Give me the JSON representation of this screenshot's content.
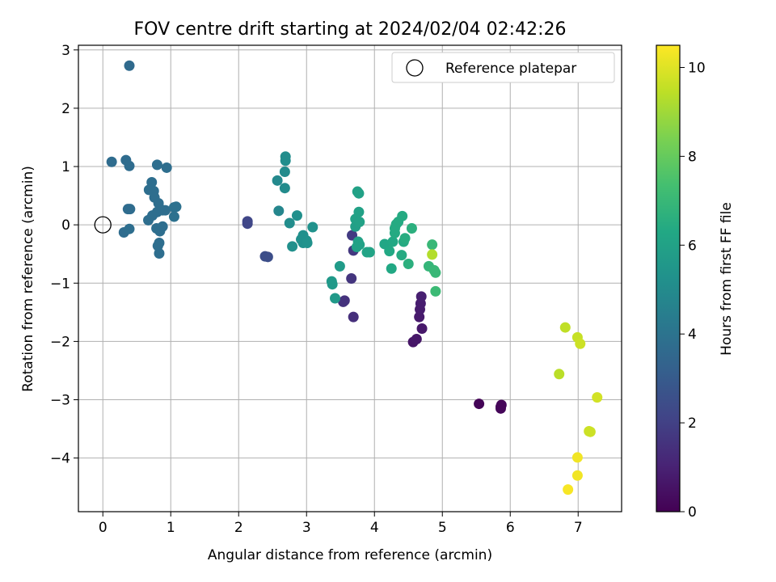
{
  "chart_data": {
    "type": "scatter",
    "title": "FOV centre drift starting at 2024/02/04 02:42:26",
    "xlabel": "Angular distance from reference (arcmin)",
    "ylabel": "Rotation from reference (arcmin)",
    "colorbar_label": "Hours from first FF file",
    "colormap": "viridis",
    "xlim": [
      -0.36,
      7.64
    ],
    "ylim": [
      -4.92,
      3.08
    ],
    "x_ticks": [
      0,
      1,
      2,
      3,
      4,
      5,
      6,
      7
    ],
    "y_ticks": [
      -4,
      -3,
      -2,
      -1,
      0,
      1,
      2,
      3
    ],
    "x_tick_labels": [
      "0",
      "1",
      "2",
      "3",
      "4",
      "5",
      "6",
      "7"
    ],
    "y_tick_labels": [
      "−4",
      "−3",
      "−2",
      "−1",
      "0",
      "1",
      "2",
      "3"
    ],
    "colorbar_range": [
      0,
      10.5
    ],
    "colorbar_ticks": [
      0,
      2,
      4,
      6,
      8,
      10
    ],
    "colorbar_tick_labels": [
      "0",
      "2",
      "4",
      "6",
      "8",
      "10"
    ],
    "grid": true,
    "legend": {
      "entry": "Reference platepar",
      "placement": "top-right"
    },
    "reference_point": {
      "x": 0,
      "y": 0
    },
    "points": [
      {
        "x": 5.54,
        "y": -3.07,
        "h": 0.1
      },
      {
        "x": 5.86,
        "y": -3.12,
        "h": 0.1
      },
      {
        "x": 5.87,
        "y": -3.09,
        "h": 0.15
      },
      {
        "x": 5.86,
        "y": -3.15,
        "h": 0.15
      },
      {
        "x": 4.57,
        "y": -2.01,
        "h": 0.6
      },
      {
        "x": 4.62,
        "y": -1.96,
        "h": 0.65
      },
      {
        "x": 4.7,
        "y": -1.78,
        "h": 0.7
      },
      {
        "x": 4.66,
        "y": -1.58,
        "h": 0.75
      },
      {
        "x": 4.67,
        "y": -1.45,
        "h": 0.8
      },
      {
        "x": 4.68,
        "y": -1.35,
        "h": 0.85
      },
      {
        "x": 4.69,
        "y": -1.23,
        "h": 0.9
      },
      {
        "x": 3.69,
        "y": -1.58,
        "h": 1.4
      },
      {
        "x": 3.56,
        "y": -1.3,
        "h": 1.5
      },
      {
        "x": 3.54,
        "y": -1.32,
        "h": 1.5
      },
      {
        "x": 3.66,
        "y": -0.92,
        "h": 1.6
      },
      {
        "x": 3.69,
        "y": -0.44,
        "h": 1.7
      },
      {
        "x": 3.67,
        "y": -0.18,
        "h": 1.8
      },
      {
        "x": 2.13,
        "y": 0.02,
        "h": 2.2
      },
      {
        "x": 2.13,
        "y": 0.06,
        "h": 2.2
      },
      {
        "x": 2.39,
        "y": -0.54,
        "h": 2.5
      },
      {
        "x": 2.43,
        "y": -0.55,
        "h": 2.5
      },
      {
        "x": 0.39,
        "y": 2.73,
        "h": 3.6
      },
      {
        "x": 0.13,
        "y": 1.08,
        "h": 3.7
      },
      {
        "x": 0.34,
        "y": 1.11,
        "h": 3.7
      },
      {
        "x": 0.39,
        "y": 1.01,
        "h": 3.7
      },
      {
        "x": 0.4,
        "y": 0.27,
        "h": 3.7
      },
      {
        "x": 0.37,
        "y": 0.27,
        "h": 3.7
      },
      {
        "x": 0.31,
        "y": -0.13,
        "h": 3.7
      },
      {
        "x": 0.39,
        "y": -0.07,
        "h": 3.8
      },
      {
        "x": 0.67,
        "y": 0.08,
        "h": 3.8
      },
      {
        "x": 0.72,
        "y": 0.73,
        "h": 3.8
      },
      {
        "x": 0.68,
        "y": 0.6,
        "h": 3.8
      },
      {
        "x": 0.75,
        "y": 0.58,
        "h": 3.8
      },
      {
        "x": 0.76,
        "y": 0.47,
        "h": 3.8
      },
      {
        "x": 0.8,
        "y": 1.03,
        "h": 3.8
      },
      {
        "x": 0.94,
        "y": 0.98,
        "h": 3.8
      },
      {
        "x": 0.82,
        "y": 0.37,
        "h": 3.8
      },
      {
        "x": 0.86,
        "y": 0.26,
        "h": 3.8
      },
      {
        "x": 0.8,
        "y": 0.22,
        "h": 3.8
      },
      {
        "x": 0.88,
        "y": 0.25,
        "h": 3.8
      },
      {
        "x": 0.92,
        "y": 0.25,
        "h": 3.8
      },
      {
        "x": 0.73,
        "y": 0.16,
        "h": 3.8
      },
      {
        "x": 0.79,
        "y": -0.06,
        "h": 3.8
      },
      {
        "x": 0.84,
        "y": -0.11,
        "h": 3.8
      },
      {
        "x": 0.88,
        "y": -0.03,
        "h": 3.8
      },
      {
        "x": 0.83,
        "y": -0.31,
        "h": 3.8
      },
      {
        "x": 0.81,
        "y": -0.36,
        "h": 3.8
      },
      {
        "x": 0.83,
        "y": -0.49,
        "h": 3.8
      },
      {
        "x": 1.05,
        "y": 0.3,
        "h": 3.9
      },
      {
        "x": 1.08,
        "y": 0.31,
        "h": 3.9
      },
      {
        "x": 1.05,
        "y": 0.14,
        "h": 3.9
      },
      {
        "x": 2.59,
        "y": 0.24,
        "h": 4.8
      },
      {
        "x": 2.57,
        "y": 0.76,
        "h": 4.9
      },
      {
        "x": 2.68,
        "y": 0.63,
        "h": 5.0
      },
      {
        "x": 2.68,
        "y": 0.91,
        "h": 5.0
      },
      {
        "x": 2.69,
        "y": 1.1,
        "h": 5.1
      },
      {
        "x": 2.69,
        "y": 1.17,
        "h": 5.1
      },
      {
        "x": 2.75,
        "y": 0.03,
        "h": 5.1
      },
      {
        "x": 2.79,
        "y": -0.37,
        "h": 5.2
      },
      {
        "x": 2.86,
        "y": 0.16,
        "h": 5.2
      },
      {
        "x": 2.92,
        "y": -0.25,
        "h": 5.2
      },
      {
        "x": 2.95,
        "y": -0.18,
        "h": 5.2
      },
      {
        "x": 2.95,
        "y": -0.31,
        "h": 5.2
      },
      {
        "x": 3.0,
        "y": -0.27,
        "h": 5.2
      },
      {
        "x": 3.01,
        "y": -0.31,
        "h": 5.3
      },
      {
        "x": 3.09,
        "y": -0.04,
        "h": 5.3
      },
      {
        "x": 3.37,
        "y": -0.97,
        "h": 5.6
      },
      {
        "x": 3.38,
        "y": -1.02,
        "h": 5.6
      },
      {
        "x": 3.42,
        "y": -1.26,
        "h": 5.6
      },
      {
        "x": 3.49,
        "y": -0.71,
        "h": 5.7
      },
      {
        "x": 3.72,
        "y": -0.03,
        "h": 5.9
      },
      {
        "x": 3.72,
        "y": 0.1,
        "h": 6.0
      },
      {
        "x": 3.75,
        "y": 0.57,
        "h": 6.0
      },
      {
        "x": 3.77,
        "y": 0.54,
        "h": 6.0
      },
      {
        "x": 3.77,
        "y": 0.22,
        "h": 6.0
      },
      {
        "x": 3.78,
        "y": 0.05,
        "h": 6.0
      },
      {
        "x": 3.76,
        "y": -0.29,
        "h": 6.0
      },
      {
        "x": 3.78,
        "y": -0.34,
        "h": 6.0
      },
      {
        "x": 3.74,
        "y": -0.38,
        "h": 6.0
      },
      {
        "x": 3.89,
        "y": -0.47,
        "h": 6.1
      },
      {
        "x": 3.93,
        "y": -0.47,
        "h": 6.1
      },
      {
        "x": 4.15,
        "y": -0.33,
        "h": 6.2
      },
      {
        "x": 4.22,
        "y": -0.45,
        "h": 6.3
      },
      {
        "x": 4.25,
        "y": -0.75,
        "h": 6.3
      },
      {
        "x": 4.27,
        "y": -0.29,
        "h": 6.3
      },
      {
        "x": 4.3,
        "y": -0.14,
        "h": 6.4
      },
      {
        "x": 4.3,
        "y": -0.06,
        "h": 6.4
      },
      {
        "x": 4.32,
        "y": 0.01,
        "h": 6.4
      },
      {
        "x": 4.35,
        "y": 0.05,
        "h": 6.4
      },
      {
        "x": 4.4,
        "y": -0.52,
        "h": 6.4
      },
      {
        "x": 4.41,
        "y": 0.15,
        "h": 6.4
      },
      {
        "x": 4.43,
        "y": -0.29,
        "h": 6.4
      },
      {
        "x": 4.45,
        "y": -0.23,
        "h": 6.5
      },
      {
        "x": 4.5,
        "y": -0.67,
        "h": 6.6
      },
      {
        "x": 4.55,
        "y": -0.06,
        "h": 6.6
      },
      {
        "x": 4.8,
        "y": -0.71,
        "h": 6.9
      },
      {
        "x": 4.85,
        "y": -0.34,
        "h": 7.0
      },
      {
        "x": 4.88,
        "y": -0.78,
        "h": 7.0
      },
      {
        "x": 4.9,
        "y": -0.82,
        "h": 7.0
      },
      {
        "x": 4.9,
        "y": -1.14,
        "h": 7.1
      },
      {
        "x": 4.85,
        "y": -0.51,
        "h": 9.3
      },
      {
        "x": 6.72,
        "y": -2.56,
        "h": 9.4
      },
      {
        "x": 6.81,
        "y": -1.76,
        "h": 9.5
      },
      {
        "x": 6.99,
        "y": -1.93,
        "h": 9.6
      },
      {
        "x": 7.03,
        "y": -2.04,
        "h": 9.7
      },
      {
        "x": 7.16,
        "y": -3.54,
        "h": 9.7
      },
      {
        "x": 7.18,
        "y": -3.55,
        "h": 9.7
      },
      {
        "x": 7.28,
        "y": -2.96,
        "h": 9.8
      },
      {
        "x": 6.99,
        "y": -3.99,
        "h": 10.3
      },
      {
        "x": 6.99,
        "y": -4.3,
        "h": 10.3
      },
      {
        "x": 6.85,
        "y": -4.54,
        "h": 10.4
      }
    ]
  }
}
